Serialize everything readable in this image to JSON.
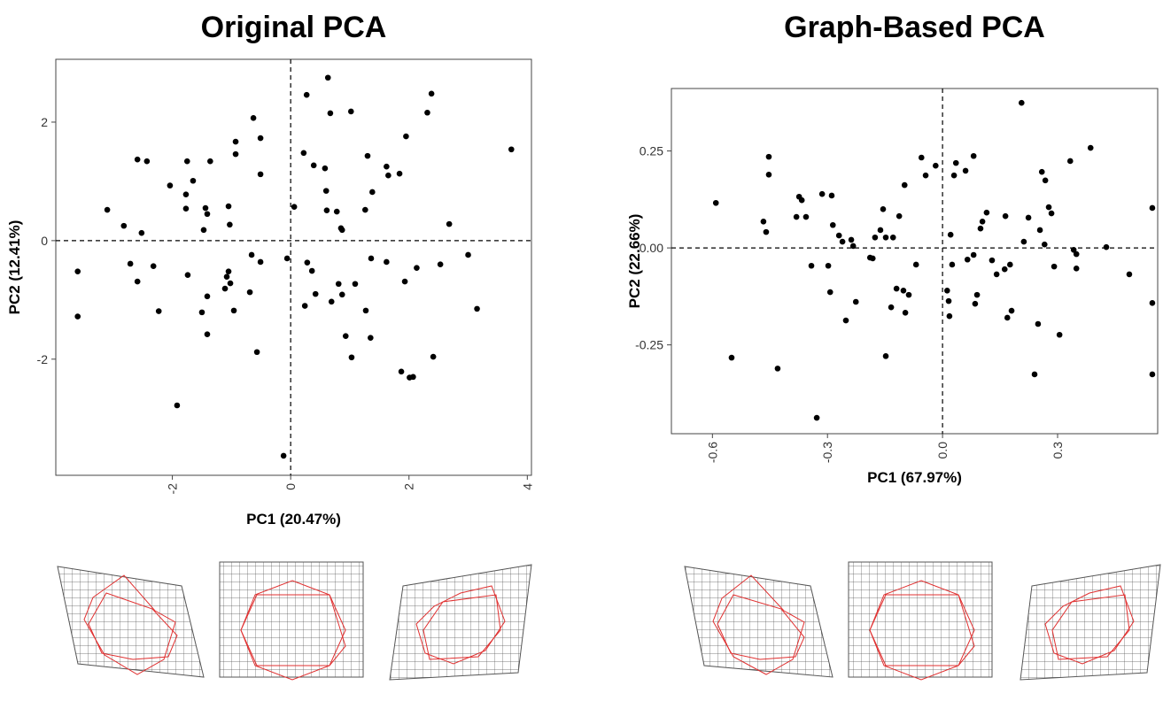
{
  "chart_data": [
    {
      "type": "scatter",
      "title": "Original PCA",
      "x_label": "PC1 (20.47%)",
      "y_label": "PC2 (12.41%)",
      "xlim": [
        -3.97,
        4.07
      ],
      "ylim": [
        -3.96,
        3.06
      ],
      "xticks": [
        -2,
        0,
        2,
        4
      ],
      "yticks": [
        -2,
        0,
        2
      ],
      "zero_lines": true,
      "color": "#000000",
      "x": [
        -3.6,
        -3.6,
        -3.1,
        -2.82,
        -2.71,
        -2.59,
        -2.59,
        -2.52,
        -2.43,
        -2.32,
        -2.23,
        -2.04,
        -1.92,
        -1.77,
        -1.75,
        -1.77,
        -1.74,
        -1.65,
        -1.5,
        -1.47,
        -1.44,
        -1.41,
        -1.36,
        -1.41,
        -1.41,
        -1.05,
        -1.03,
        -1.05,
        -1.08,
        -0.96,
        -0.93,
        -0.93,
        -1.02,
        -1.11,
        -0.69,
        -0.66,
        -0.51,
        -0.51,
        -0.57,
        -0.63,
        -0.51,
        -0.06,
        -0.12,
        0.06,
        0.22,
        0.24,
        0.27,
        0.28,
        0.36,
        0.39,
        0.42,
        0.58,
        0.6,
        0.61,
        0.63,
        0.67,
        0.69,
        0.78,
        0.85,
        0.87,
        0.87,
        0.93,
        0.81,
        1.02,
        1.03,
        1.09,
        1.26,
        1.27,
        1.3,
        1.35,
        1.38,
        1.36,
        1.62,
        1.62,
        1.65,
        1.84,
        1.87,
        1.93,
        1.95,
        2.01,
        2.07,
        2.13,
        2.31,
        2.38,
        2.41,
        2.53,
        2.68,
        3.0,
        3.15,
        3.73
      ],
      "values": [
        -0.52,
        -1.28,
        0.52,
        0.25,
        -0.39,
        1.37,
        -0.69,
        0.13,
        1.34,
        -0.43,
        -1.19,
        0.93,
        -2.78,
        0.54,
        1.34,
        0.78,
        -0.58,
        1.01,
        -1.21,
        0.18,
        0.55,
        0.45,
        1.34,
        -0.94,
        -1.58,
        0.58,
        0.27,
        -0.52,
        -0.61,
        -1.18,
        1.67,
        1.46,
        -0.72,
        -0.81,
        -0.87,
        -0.24,
        1.73,
        1.12,
        -1.88,
        2.07,
        -0.36,
        -0.3,
        -3.63,
        0.57,
        1.48,
        -1.1,
        2.46,
        -0.37,
        -0.51,
        1.27,
        -0.9,
        1.22,
        0.84,
        0.51,
        2.75,
        2.15,
        -1.03,
        0.49,
        0.21,
        0.18,
        -0.91,
        -1.61,
        -0.73,
        2.18,
        -1.97,
        -0.73,
        0.52,
        -1.18,
        1.43,
        -1.64,
        0.82,
        -0.3,
        -0.36,
        1.25,
        1.1,
        1.13,
        -2.21,
        -0.69,
        1.76,
        -2.31,
        -2.3,
        -0.46,
        2.16,
        2.48,
        -1.96,
        -0.4,
        0.28,
        -0.24,
        -1.15,
        1.54
      ]
    },
    {
      "type": "scatter",
      "title": "Graph-Based PCA",
      "x_label": "PC1 (67.97%)",
      "y_label": "PC2 (22.66%)",
      "xlim": [
        -0.707,
        0.561
      ],
      "ylim": [
        -0.479,
        0.411
      ],
      "xticks": [
        -0.6,
        -0.3,
        {
          "value": 0,
          "label": "0.0"
        },
        0.3
      ],
      "yticks": [
        -0.25,
        {
          "value": 0,
          "label": "0.00"
        },
        0.25
      ],
      "zero_lines": true,
      "color": "#000000",
      "x": [
        -0.591,
        -0.55,
        -0.467,
        -0.46,
        -0.453,
        -0.453,
        -0.43,
        -0.381,
        -0.374,
        -0.367,
        -0.356,
        -0.342,
        -0.328,
        -0.314,
        -0.298,
        -0.293,
        -0.289,
        -0.286,
        -0.27,
        -0.261,
        -0.252,
        -0.238,
        -0.233,
        -0.226,
        -0.189,
        -0.182,
        -0.176,
        -0.162,
        -0.155,
        -0.148,
        -0.148,
        -0.134,
        -0.129,
        -0.12,
        -0.113,
        -0.102,
        -0.099,
        -0.097,
        -0.088,
        -0.069,
        -0.055,
        -0.044,
        -0.018,
        0.012,
        0.016,
        0.018,
        0.021,
        0.025,
        0.03,
        0.035,
        0.06,
        0.081,
        0.065,
        0.081,
        0.085,
        0.09,
        0.099,
        0.104,
        0.115,
        0.129,
        0.141,
        0.162,
        0.164,
        0.169,
        0.176,
        0.18,
        0.206,
        0.212,
        0.224,
        0.24,
        0.249,
        0.254,
        0.259,
        0.266,
        0.268,
        0.277,
        0.284,
        0.291,
        0.305,
        0.333,
        0.342,
        0.349,
        0.349,
        0.386,
        0.427,
        0.487,
        0.547,
        0.547,
        0.547
      ],
      "values": [
        0.116,
        -0.283,
        0.068,
        0.041,
        0.235,
        0.189,
        -0.311,
        0.08,
        0.132,
        0.123,
        0.08,
        -0.046,
        -0.438,
        0.139,
        -0.046,
        -0.114,
        0.135,
        0.059,
        0.032,
        0.016,
        -0.187,
        0.021,
        0.005,
        -0.139,
        -0.025,
        -0.027,
        0.027,
        0.046,
        0.1,
        0.027,
        -0.279,
        -0.153,
        0.027,
        -0.105,
        0.082,
        -0.11,
        0.162,
        -0.167,
        -0.121,
        -0.043,
        0.233,
        0.187,
        0.212,
        -0.11,
        -0.137,
        -0.176,
        0.034,
        -0.043,
        0.187,
        0.219,
        0.199,
        0.237,
        -0.03,
        -0.018,
        -0.144,
        -0.121,
        0.05,
        0.068,
        0.091,
        -0.032,
        -0.068,
        -0.055,
        0.082,
        -0.18,
        -0.043,
        -0.162,
        0.374,
        0.016,
        0.078,
        -0.326,
        -0.196,
        0.046,
        0.196,
        0.009,
        0.174,
        0.105,
        0.089,
        -0.048,
        -0.224,
        0.224,
        -0.005,
        -0.016,
        -0.053,
        0.258,
        0.002,
        -0.068,
        0.103,
        -0.142,
        -0.326
      ]
    }
  ]
}
